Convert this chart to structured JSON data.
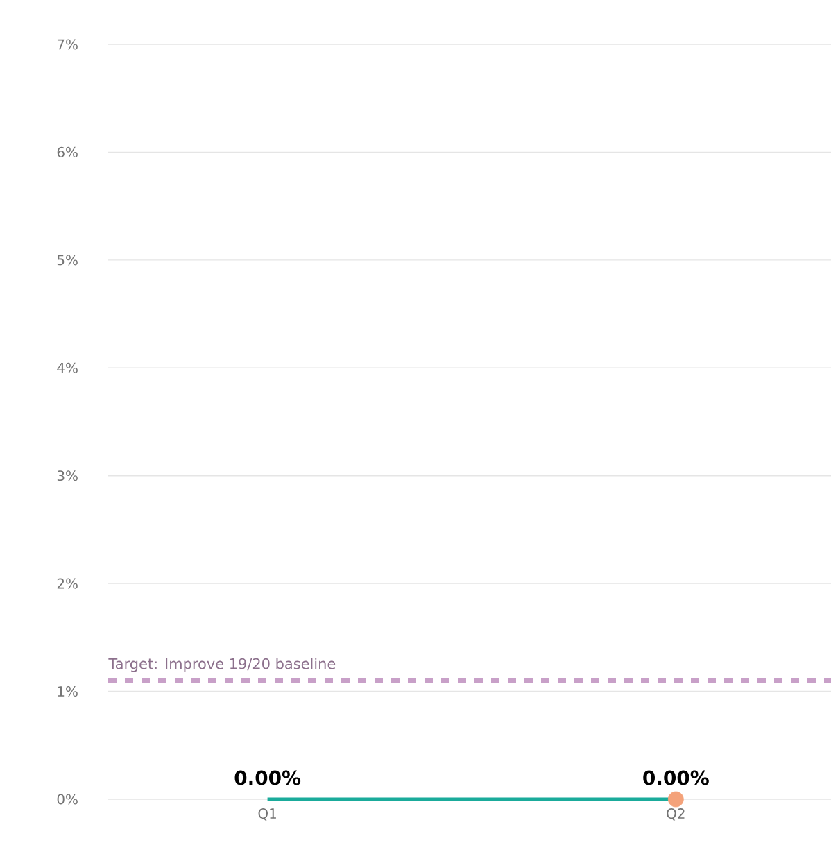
{
  "chart_data": {
    "type": "line",
    "categories": [
      "Q1",
      "Q2"
    ],
    "series": [
      {
        "color": "#1aab9b",
        "values": [
          0,
          0
        ],
        "marker": "none",
        "value_labels": [
          "0.00%",
          "0.00%"
        ]
      },
      {
        "type": "scatter",
        "x": [
          "Q2"
        ],
        "color": "#f4a27a",
        "values": [
          0
        ],
        "marker": "circle"
      }
    ],
    "ylim": [
      0,
      7
    ],
    "yticks": [
      {
        "value": 0,
        "label": "0%"
      },
      {
        "value": 1,
        "label": "1%"
      },
      {
        "value": 2,
        "label": "2%"
      },
      {
        "value": 3,
        "label": "3%"
      },
      {
        "value": 4,
        "label": "4%"
      },
      {
        "value": 5,
        "label": "5%"
      },
      {
        "value": 6,
        "label": "6%"
      },
      {
        "value": 7,
        "label": "7%"
      }
    ],
    "grid": "y",
    "ref_lines": [
      {
        "axis": "y",
        "value": 1.1,
        "label": "Target: Improve 19/20 baseline",
        "color": "#c8a0c8",
        "line_style": "dashed"
      }
    ]
  }
}
